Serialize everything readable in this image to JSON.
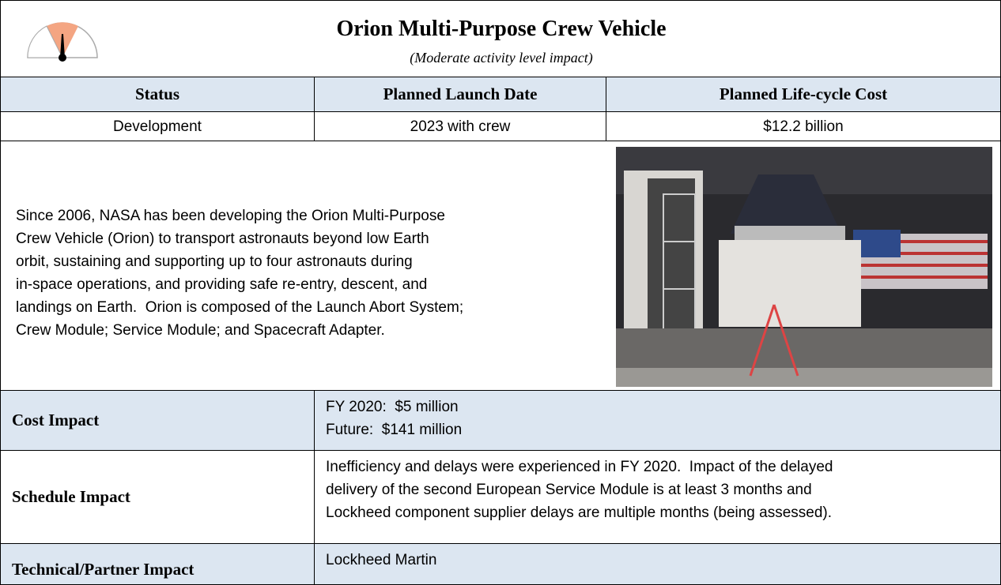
{
  "header": {
    "title": "Orion Multi-Purpose Crew Vehicle",
    "subtitle": "(Moderate activity level impact)"
  },
  "table": {
    "headers": [
      "Status",
      "Planned Launch Date",
      "Planned Life-cycle Cost"
    ],
    "values": [
      "Development",
      "2023 with crew",
      "$12.2 billion"
    ]
  },
  "description": [
    "Since 2006, NASA has been developing the Orion Multi-Purpose",
    "Crew Vehicle (Orion) to transport astronauts beyond low Earth",
    "orbit, sustaining and supporting up to four astronauts during",
    "in-space operations, and providing safe re-entry, descent, and",
    "landings on Earth.  Orion is composed of the Launch Abort System;",
    "Crew Module; Service Module; and Spacecraft Adapter."
  ],
  "impacts": [
    {
      "label": "Cost Impact",
      "lines": [
        "FY 2020:  $5 million",
        "Future:  $141 million"
      ]
    },
    {
      "label": "Schedule Impact",
      "lines": [
        "Inefficiency and delays were experienced in FY 2020.  Impact of the delayed",
        "delivery of the second European Service Module is at least 3 months and",
        "Lockheed component supplier delays are multiple months (being assessed)."
      ]
    },
    {
      "label": "Technical/Partner Impact",
      "lines": [
        "Lockheed Martin"
      ]
    }
  ]
}
